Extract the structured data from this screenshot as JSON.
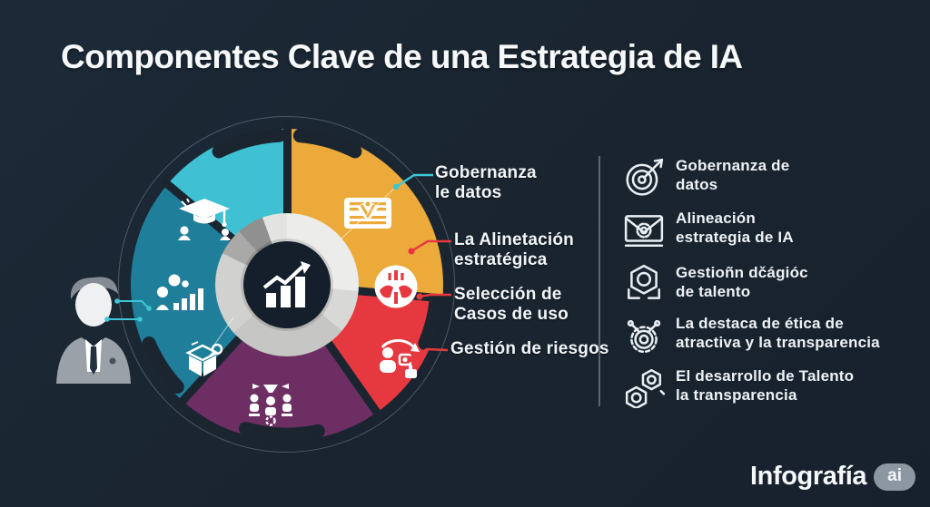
{
  "title": "Componentes Clave de una Estrategia de IA",
  "colors": {
    "background": "#1a2530",
    "text": "#f4f6f8",
    "callout_teal": "#3fc6d4",
    "callout_red": "#e6383f",
    "badge_gray": "#8d97a1"
  },
  "chart_data": {
    "type": "pie",
    "title": "Componentes Clave de una Estrategia de IA",
    "center_icon": "growth-chart-icon",
    "legend_position": "right",
    "segments": [
      {
        "name": "gobernanza-de-datos",
        "color": "#ecaa3a",
        "start_deg": 0,
        "end_deg": 95,
        "icon": "certificate-document-icon"
      },
      {
        "name": "seleccion-casos-de-uso",
        "color": "#e6383f",
        "start_deg": 95,
        "end_deg": 145,
        "icon": "risk-circle-icon"
      },
      {
        "name": "gestion-de-riesgos",
        "color": "#6d2f63",
        "start_deg": 145,
        "end_deg": 222,
        "icon": "user-management-icon"
      },
      {
        "name": "gestion-de-talento",
        "color": "#1f7f9b",
        "start_deg": 222,
        "end_deg": 310,
        "icon": "ranking-chart-icon"
      },
      {
        "name": "alineacion-estrategica",
        "color": "#3fc0d3",
        "start_deg": 310,
        "end_deg": 360,
        "icon": "graduation-cap-icon"
      }
    ]
  },
  "callouts": [
    {
      "lines": [
        "Gobernanza",
        "le datos"
      ],
      "connector_color": "#3fc6d4"
    },
    {
      "lines": [
        "La Alinetación",
        "estratégica"
      ],
      "connector_color": "#e6383f"
    },
    {
      "lines": [
        "Selección de",
        "Casos de uso"
      ],
      "connector_color": "#e6383f"
    },
    {
      "lines": [
        "Gestión de riesgos"
      ],
      "connector_color": "#e6383f"
    }
  ],
  "legend": {
    "items": [
      {
        "icon": "target-icon",
        "lines": [
          "Gobernanza de",
          "datos"
        ]
      },
      {
        "icon": "envelope-gear-icon",
        "lines": [
          "Alineación",
          "estrategia de IA"
        ]
      },
      {
        "icon": "hexagon-person-icon",
        "lines": [
          "Gestioñn dčágióc",
          "de talento"
        ]
      },
      {
        "icon": "ethics-gear-icon",
        "lines": [
          "La destaca de ética de",
          "atractiva y la transparencia"
        ]
      },
      {
        "icon": "talent-gears-icon",
        "lines": [
          "El desarrollo de Talento",
          "la transparencia"
        ]
      }
    ]
  },
  "footer": {
    "brand": "Infografía",
    "badge": "ai",
    "badge_color": "#8d97a1"
  }
}
